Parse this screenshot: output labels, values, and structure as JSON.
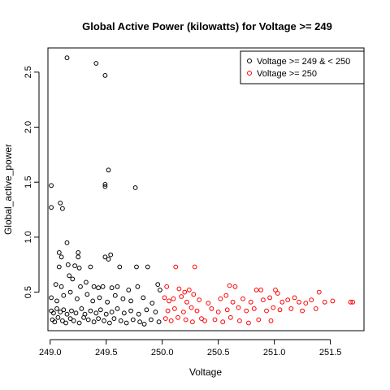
{
  "chart_data": {
    "type": "scatter",
    "title": "Global Active Power (kilowatts) for Voltage >= 249",
    "xlabel": "Voltage",
    "ylabel": "Global_active_power",
    "xlim": [
      248.98,
      251.8
    ],
    "ylim": [
      0.15,
      2.72
    ],
    "x_ticks": [
      249.0,
      249.5,
      250.0,
      250.5,
      251.0,
      251.5
    ],
    "x_tick_labels": [
      "249.0",
      "249.5",
      "250.0",
      "250.5",
      "251.0",
      "251.5"
    ],
    "y_ticks": [
      0.5,
      1.0,
      1.5,
      2.0,
      2.5
    ],
    "y_tick_labels": [
      "0.5",
      "1.0",
      "1.5",
      "2.0",
      "2.5"
    ],
    "legend_position": "top-right",
    "grid": false,
    "series": [
      {
        "name": "Voltage >= 249 & < 250",
        "color": "#000000",
        "points": [
          [
            249.01,
            1.47
          ],
          [
            249.01,
            1.27
          ],
          [
            249.09,
            1.31
          ],
          [
            249.11,
            1.26
          ],
          [
            249.15,
            2.63
          ],
          [
            249.15,
            0.95
          ],
          [
            249.41,
            2.58
          ],
          [
            249.49,
            2.47
          ],
          [
            249.49,
            1.48
          ],
          [
            249.49,
            1.46
          ],
          [
            249.52,
            1.61
          ],
          [
            249.76,
            1.45
          ],
          [
            249.08,
            0.86
          ],
          [
            249.1,
            0.82
          ],
          [
            249.08,
            0.73
          ],
          [
            249.16,
            0.75
          ],
          [
            249.25,
            0.86
          ],
          [
            249.25,
            0.82
          ],
          [
            249.22,
            0.74
          ],
          [
            249.26,
            0.72
          ],
          [
            249.36,
            0.73
          ],
          [
            249.49,
            0.82
          ],
          [
            249.52,
            0.8
          ],
          [
            249.54,
            0.84
          ],
          [
            249.62,
            0.73
          ],
          [
            249.77,
            0.73
          ],
          [
            249.87,
            0.73
          ],
          [
            249.05,
            0.57
          ],
          [
            249.1,
            0.55
          ],
          [
            249.17,
            0.65
          ],
          [
            249.2,
            0.62
          ],
          [
            249.27,
            0.55
          ],
          [
            249.32,
            0.59
          ],
          [
            249.39,
            0.55
          ],
          [
            249.43,
            0.54
          ],
          [
            249.47,
            0.55
          ],
          [
            249.55,
            0.54
          ],
          [
            249.6,
            0.55
          ],
          [
            249.7,
            0.52
          ],
          [
            249.78,
            0.55
          ],
          [
            249.96,
            0.57
          ],
          [
            249.98,
            0.52
          ],
          [
            249.01,
            0.45
          ],
          [
            249.06,
            0.42
          ],
          [
            249.12,
            0.47
          ],
          [
            249.18,
            0.5
          ],
          [
            249.24,
            0.44
          ],
          [
            249.33,
            0.48
          ],
          [
            249.38,
            0.42
          ],
          [
            249.44,
            0.45
          ],
          [
            249.51,
            0.41
          ],
          [
            249.58,
            0.47
          ],
          [
            249.65,
            0.44
          ],
          [
            249.72,
            0.42
          ],
          [
            249.83,
            0.45
          ],
          [
            249.91,
            0.4
          ],
          [
            249.01,
            0.33
          ],
          [
            249.03,
            0.31
          ],
          [
            249.06,
            0.35
          ],
          [
            249.09,
            0.32
          ],
          [
            249.12,
            0.34
          ],
          [
            249.15,
            0.3
          ],
          [
            249.19,
            0.33
          ],
          [
            249.23,
            0.31
          ],
          [
            249.28,
            0.35
          ],
          [
            249.31,
            0.3
          ],
          [
            249.36,
            0.33
          ],
          [
            249.41,
            0.31
          ],
          [
            249.45,
            0.34
          ],
          [
            249.5,
            0.3
          ],
          [
            249.55,
            0.32
          ],
          [
            249.6,
            0.35
          ],
          [
            249.66,
            0.31
          ],
          [
            249.72,
            0.33
          ],
          [
            249.79,
            0.3
          ],
          [
            249.86,
            0.34
          ],
          [
            249.94,
            0.32
          ],
          [
            249.02,
            0.25
          ],
          [
            249.04,
            0.23
          ],
          [
            249.07,
            0.27
          ],
          [
            249.11,
            0.24
          ],
          [
            249.14,
            0.22
          ],
          [
            249.18,
            0.26
          ],
          [
            249.21,
            0.24
          ],
          [
            249.26,
            0.22
          ],
          [
            249.3,
            0.27
          ],
          [
            249.34,
            0.25
          ],
          [
            249.39,
            0.23
          ],
          [
            249.43,
            0.26
          ],
          [
            249.48,
            0.24
          ],
          [
            249.53,
            0.22
          ],
          [
            249.57,
            0.26
          ],
          [
            249.63,
            0.24
          ],
          [
            249.68,
            0.22
          ],
          [
            249.74,
            0.25
          ],
          [
            249.8,
            0.23
          ],
          [
            249.84,
            0.21
          ],
          [
            249.9,
            0.25
          ],
          [
            249.97,
            0.23
          ]
        ]
      },
      {
        "name": "Voltage >= 250",
        "color": "#ff0000",
        "points": [
          [
            250.12,
            0.73
          ],
          [
            250.29,
            0.73
          ],
          [
            250.04,
            0.55
          ],
          [
            250.15,
            0.53
          ],
          [
            250.2,
            0.5
          ],
          [
            250.24,
            0.52
          ],
          [
            250.28,
            0.48
          ],
          [
            250.6,
            0.56
          ],
          [
            250.65,
            0.55
          ],
          [
            250.84,
            0.52
          ],
          [
            250.88,
            0.52
          ],
          [
            251.01,
            0.52
          ],
          [
            251.03,
            0.49
          ],
          [
            251.4,
            0.5
          ],
          [
            250.02,
            0.45
          ],
          [
            250.06,
            0.42
          ],
          [
            250.1,
            0.44
          ],
          [
            250.17,
            0.46
          ],
          [
            250.22,
            0.41
          ],
          [
            250.33,
            0.43
          ],
          [
            250.41,
            0.4
          ],
          [
            250.52,
            0.44
          ],
          [
            250.57,
            0.47
          ],
          [
            250.63,
            0.41
          ],
          [
            250.72,
            0.44
          ],
          [
            250.79,
            0.41
          ],
          [
            250.9,
            0.43
          ],
          [
            250.96,
            0.45
          ],
          [
            251.07,
            0.41
          ],
          [
            251.12,
            0.43
          ],
          [
            251.18,
            0.45
          ],
          [
            251.22,
            0.41
          ],
          [
            251.28,
            0.4
          ],
          [
            251.33,
            0.43
          ],
          [
            251.45,
            0.41
          ],
          [
            251.52,
            0.42
          ],
          [
            251.68,
            0.41
          ],
          [
            251.7,
            0.41
          ],
          [
            250.05,
            0.33
          ],
          [
            250.11,
            0.35
          ],
          [
            250.19,
            0.32
          ],
          [
            250.26,
            0.36
          ],
          [
            250.31,
            0.33
          ],
          [
            250.44,
            0.35
          ],
          [
            250.5,
            0.32
          ],
          [
            250.58,
            0.34
          ],
          [
            250.68,
            0.36
          ],
          [
            250.75,
            0.33
          ],
          [
            250.82,
            0.35
          ],
          [
            250.93,
            0.33
          ],
          [
            250.99,
            0.36
          ],
          [
            251.05,
            0.34
          ],
          [
            251.15,
            0.35
          ],
          [
            251.25,
            0.33
          ],
          [
            251.37,
            0.35
          ],
          [
            250.03,
            0.26
          ],
          [
            250.08,
            0.24
          ],
          [
            250.14,
            0.27
          ],
          [
            250.21,
            0.25
          ],
          [
            250.27,
            0.23
          ],
          [
            250.35,
            0.26
          ],
          [
            250.38,
            0.24
          ],
          [
            250.47,
            0.25
          ],
          [
            250.54,
            0.23
          ],
          [
            250.61,
            0.27
          ],
          [
            250.69,
            0.24
          ],
          [
            250.77,
            0.22
          ],
          [
            250.86,
            0.25
          ],
          [
            250.97,
            0.24
          ]
        ]
      }
    ]
  }
}
